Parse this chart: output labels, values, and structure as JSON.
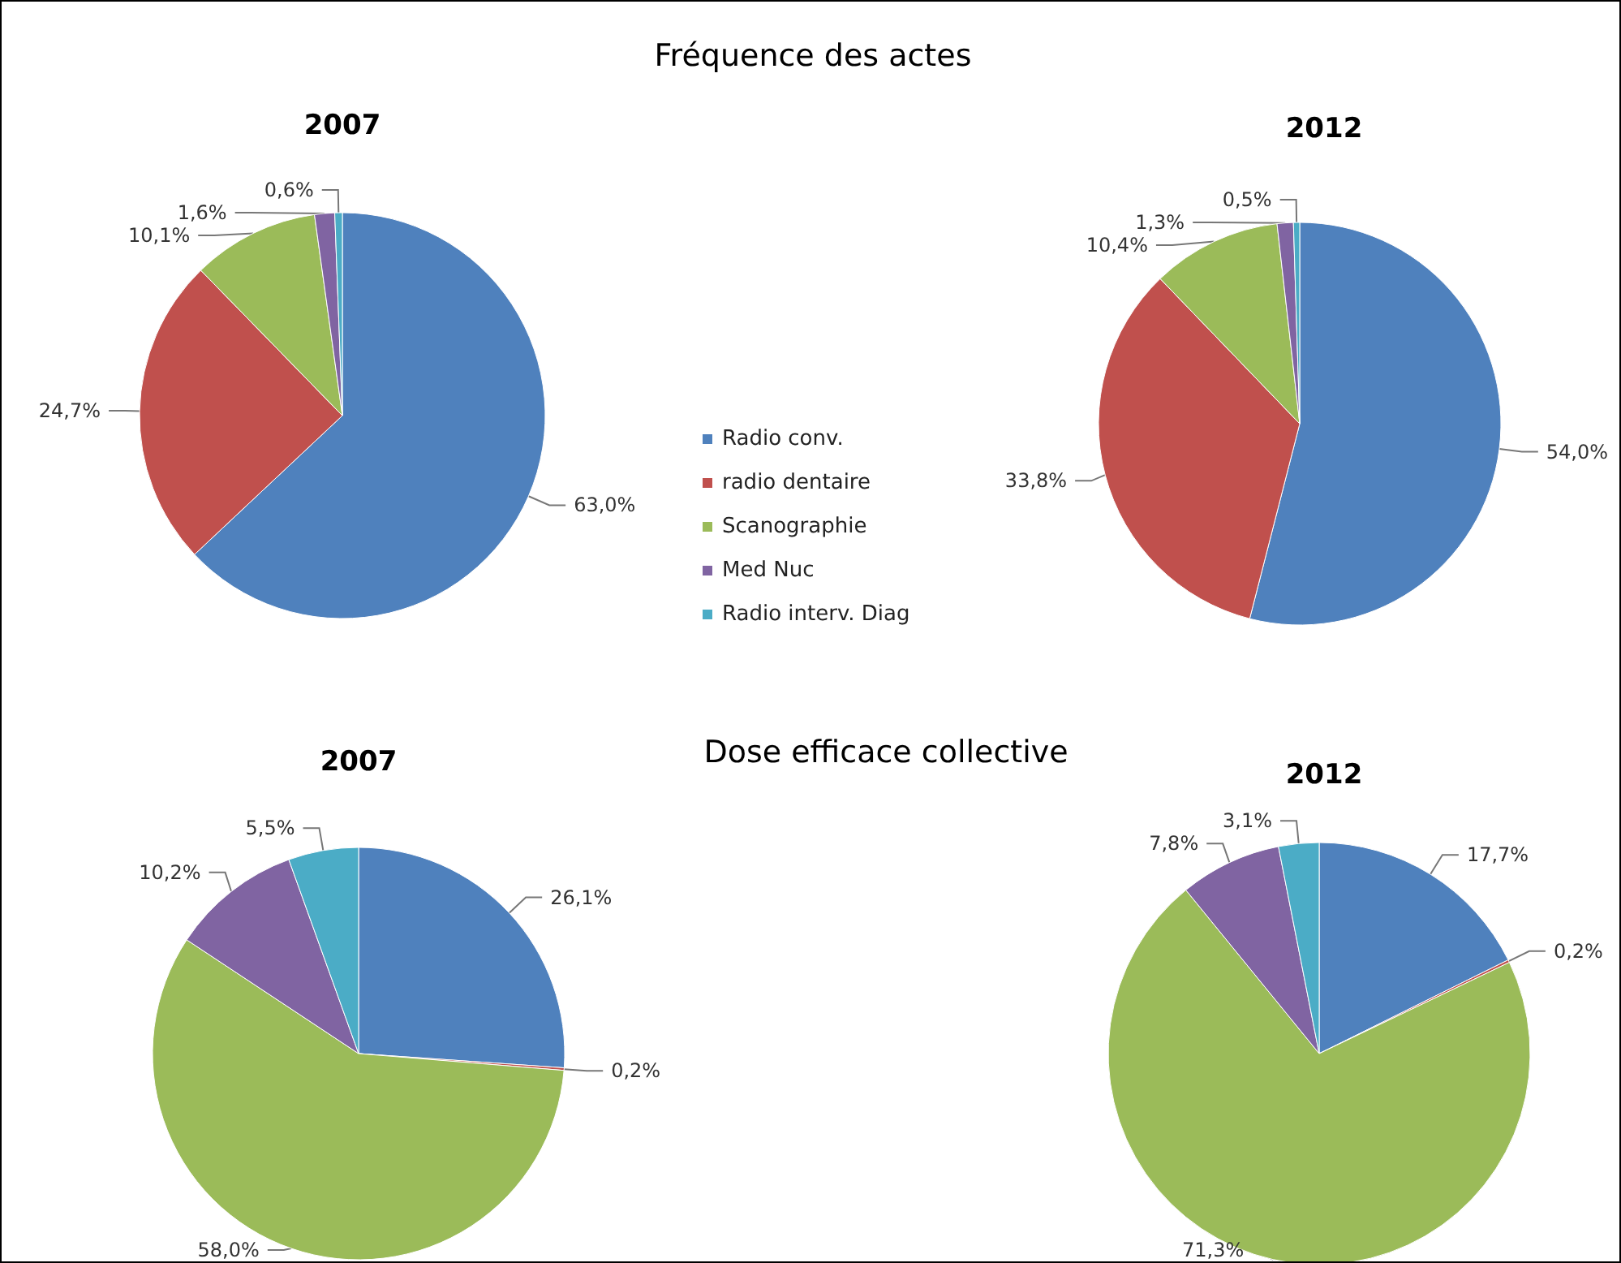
{
  "chart_data": [
    {
      "type": "pie",
      "title": "2007",
      "annotations": [
        "Fréquence des actes"
      ],
      "categories": [
        "Radio conv.",
        "radio dentaire",
        "Scanographie",
        "Med Nuc",
        "Radio interv. Diag"
      ],
      "values": [
        63.0,
        24.7,
        10.1,
        1.6,
        0.6
      ],
      "value_labels": [
        "63,0%",
        "24,7%",
        "10,1%",
        "1,6%",
        "0,6%"
      ],
      "colors": [
        "#4f81bd",
        "#c0504d",
        "#9bbb59",
        "#8064a2",
        "#4bacc6"
      ],
      "legend": "right"
    },
    {
      "type": "pie",
      "title": "2012",
      "values": [
        54.0,
        33.8,
        10.4,
        1.3,
        0.5
      ],
      "value_labels": [
        "54,0%",
        "33,8%",
        "10,4%",
        "1,3%",
        "0,5%"
      ],
      "colors": [
        "#4f81bd",
        "#c0504d",
        "#9bbb59",
        "#8064a2",
        "#4bacc6"
      ]
    },
    {
      "type": "pie",
      "title": "2007",
      "annotations": [
        "Dose efficace collective"
      ],
      "values": [
        26.1,
        0.2,
        58.0,
        10.2,
        5.5
      ],
      "value_labels": [
        "26,1%",
        "0,2%",
        "58,0%",
        "10,2%",
        "5,5%"
      ],
      "colors": [
        "#4f81bd",
        "#c0504d",
        "#9bbb59",
        "#8064a2",
        "#4bacc6"
      ]
    },
    {
      "type": "pie",
      "title": "2012",
      "values": [
        17.7,
        0.2,
        71.3,
        7.8,
        3.1
      ],
      "value_labels": [
        "17,7%",
        "0,2%",
        "71,3%",
        "7,8%",
        "3,1%"
      ],
      "colors": [
        "#4f81bd",
        "#c0504d",
        "#9bbb59",
        "#8064a2",
        "#4bacc6"
      ]
    }
  ]
}
